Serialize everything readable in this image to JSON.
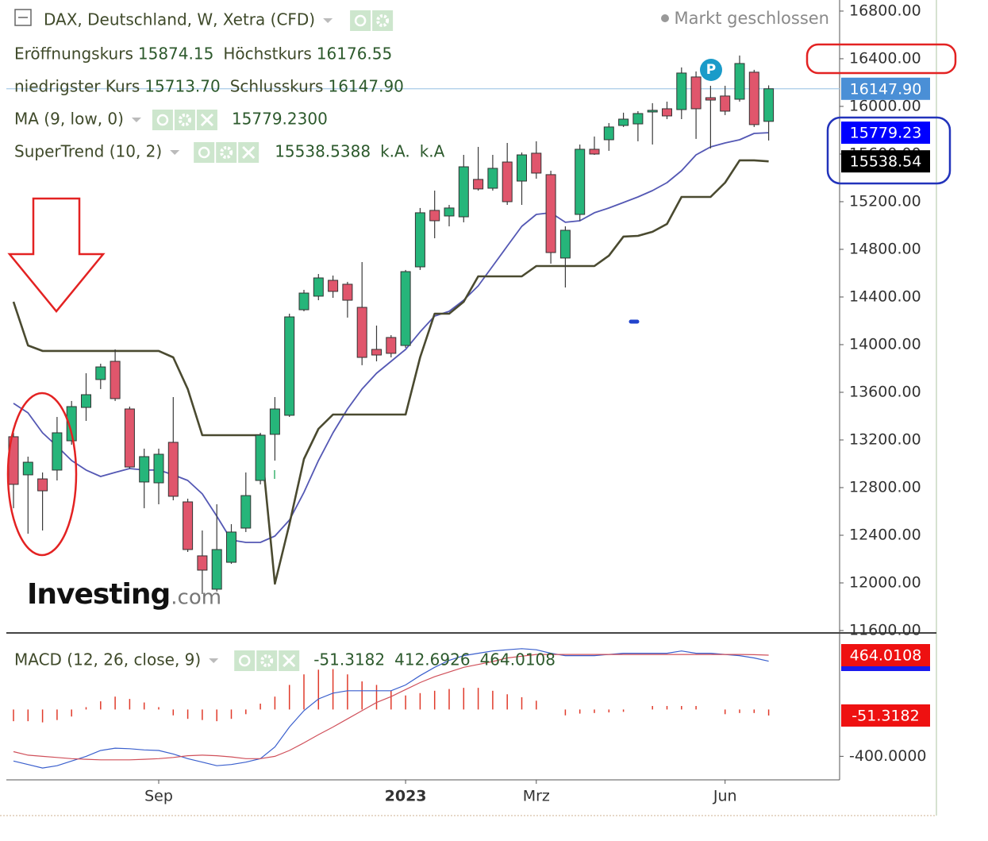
{
  "header": {
    "title": "DAX, Deutschland, W, Xetra (CFD)",
    "status": "Markt geschlossen",
    "ohlc": [
      {
        "label": "Eröffnungskurs",
        "value": "15874.15"
      },
      {
        "label": "Höchstkurs",
        "value": "16176.55"
      },
      {
        "label": "niedrigster Kurs",
        "value": "15713.70"
      },
      {
        "label": "Schlusskurs",
        "value": "16147.90"
      }
    ],
    "logo": "Investing",
    "logo_suffix": ".com",
    "marker": "P"
  },
  "chart_data": [
    {
      "type": "candlestick",
      "categories": [
        null,
        null,
        null,
        null,
        null,
        null,
        null,
        null,
        null,
        null,
        "Sep",
        null,
        null,
        null,
        null,
        null,
        null,
        null,
        null,
        null,
        null,
        null,
        null,
        null,
        null,
        null,
        null,
        "2023",
        null,
        null,
        null,
        null,
        null,
        null,
        null,
        null,
        "Mrz",
        null,
        null,
        null,
        null,
        null,
        null,
        null,
        null,
        null,
        null,
        null,
        null,
        "Jun",
        null,
        null,
        null
      ],
      "open": [
        13227,
        12907,
        12873,
        12947,
        13193,
        13473,
        13707,
        13860,
        13460,
        12847,
        12840,
        13180,
        12680,
        12227,
        11947,
        12173,
        12460,
        12860,
        13247,
        13407,
        14293,
        14407,
        14540,
        14507,
        14313,
        13960,
        14060,
        13993,
        14653,
        15127,
        15080,
        15073,
        15387,
        15313,
        15533,
        15373,
        15607,
        15427,
        14727,
        15093,
        15640,
        15720,
        15840,
        15853,
        15953,
        15980,
        15973,
        16247,
        16073,
        16087,
        16060,
        16287,
        15874.15
      ],
      "high": [
        13260,
        13060,
        12927,
        13393,
        13527,
        13760,
        13840,
        13960,
        13480,
        13127,
        13127,
        13560,
        12707,
        12440,
        12660,
        12493,
        12927,
        13260,
        13560,
        14260,
        14460,
        14593,
        14580,
        14527,
        14693,
        14160,
        14080,
        14627,
        15147,
        15293,
        15173,
        15593,
        15660,
        15593,
        15693,
        15613,
        15707,
        15460,
        14993,
        15680,
        15747,
        15860,
        15947,
        15960,
        16027,
        16040,
        16327,
        16293,
        16173,
        16173,
        16427,
        16307,
        16176.55
      ],
      "low": [
        12627,
        12413,
        12440,
        12860,
        13160,
        13360,
        13627,
        13527,
        12960,
        12627,
        12660,
        12693,
        12260,
        11907,
        11927,
        12160,
        12427,
        12827,
        13027,
        13393,
        14280,
        14373,
        14393,
        14227,
        13827,
        13860,
        13893,
        13973,
        14627,
        14893,
        14993,
        15027,
        15293,
        15293,
        15173,
        15173,
        15393,
        14680,
        14480,
        15040,
        15593,
        15627,
        15827,
        15707,
        15680,
        15893,
        15893,
        15727,
        15647,
        15927,
        16040,
        15827,
        15713.7
      ],
      "close": [
        12827,
        13013,
        12773,
        13260,
        13480,
        13580,
        13813,
        13547,
        12973,
        13060,
        13080,
        12727,
        12280,
        12107,
        12280,
        12427,
        12733,
        13240,
        13460,
        14233,
        14433,
        14560,
        14447,
        14373,
        13893,
        13913,
        13927,
        14613,
        15107,
        15040,
        15147,
        15493,
        15307,
        15480,
        15200,
        15593,
        15440,
        14773,
        14960,
        15640,
        15600,
        15827,
        15893,
        15940,
        15967,
        15920,
        16280,
        15980,
        16053,
        15960,
        16360,
        15847,
        16147.9
      ],
      "up_color": "#26b57a",
      "down_color": "#e0566c",
      "last_label": "16147.90",
      "label_color": "#4a8fd6",
      "series": [
        {
          "name": "MA (9, low, 0)",
          "color": "#5458b4",
          "legend_values": [
            "15779.2300"
          ],
          "last_label": "15779.23",
          "label_color": "#0000ff",
          "values": [
            13507,
            13427,
            13260,
            13147,
            13027,
            12947,
            12893,
            12927,
            12960,
            12947,
            12947,
            12907,
            12860,
            12747,
            12560,
            12360,
            12340,
            12340,
            12393,
            12527,
            12760,
            13027,
            13260,
            13460,
            13627,
            13760,
            13860,
            13960,
            14107,
            14240,
            14280,
            14373,
            14493,
            14660,
            14827,
            14993,
            15093,
            15107,
            15027,
            15040,
            15107,
            15147,
            15193,
            15240,
            15293,
            15360,
            15460,
            15593,
            15660,
            15693,
            15720,
            15773,
            15779.23
          ]
        },
        {
          "name": "SuperTrend (10, 2)",
          "color": "#4a4a30",
          "legend_values": [
            "15538.5388",
            "k.A.",
            "k.A"
          ],
          "last_label": "15538.54",
          "label_color": "#000000",
          "values": [
            14360,
            13993,
            13947,
            13947,
            13947,
            13947,
            13947,
            13947,
            13947,
            13947,
            13947,
            13893,
            13627,
            13240,
            13240,
            13240,
            13240,
            13240,
            11993,
            12493,
            13040,
            13293,
            13413,
            13413,
            13413,
            13413,
            13413,
            13413,
            13893,
            14260,
            14260,
            14360,
            14573,
            14573,
            14573,
            14573,
            14660,
            14660,
            14660,
            14660,
            14660,
            14747,
            14907,
            14913,
            14947,
            15013,
            15240,
            15240,
            15240,
            15360,
            15547,
            15547,
            15538.54
          ]
        }
      ],
      "ylim": [
        11580,
        16893
      ],
      "yticks": [
        {
          "value": 16800,
          "label": "16800.00"
        },
        {
          "value": 16400,
          "label": "16400.00"
        },
        {
          "value": 16000,
          "label": "16000.00"
        },
        {
          "value": 15600,
          "label": "15600.00"
        },
        {
          "value": 15200,
          "label": "15200.00"
        },
        {
          "value": 14800,
          "label": "14800.00"
        },
        {
          "value": 14400,
          "label": "14400.00"
        },
        {
          "value": 14000,
          "label": "14000.00"
        },
        {
          "value": 13600,
          "label": "13600.00"
        },
        {
          "value": 13200,
          "label": "13200.00"
        },
        {
          "value": 12800,
          "label": "12800.00"
        },
        {
          "value": 12400,
          "label": "12400.00"
        },
        {
          "value": 12000,
          "label": "12000.00"
        },
        {
          "value": 11600,
          "label": "11600.00"
        }
      ]
    },
    {
      "type": "macd",
      "title": "MACD (12, 26, close, 9)",
      "series": [
        {
          "name": "Histogramm",
          "color": "#e03a2a",
          "legend_value": "-51.3182",
          "last_label": "-51.3182",
          "label_color": "#ee1111",
          "values": [
            -100,
            -100,
            -110,
            -90,
            -60,
            20,
            70,
            110,
            90,
            60,
            20,
            -50,
            -80,
            -90,
            -100,
            -80,
            -40,
            50,
            110,
            210,
            300,
            340,
            345,
            300,
            240,
            210,
            160,
            120,
            140,
            160,
            175,
            185,
            185,
            160,
            130,
            105,
            75,
            null,
            -50,
            -35,
            -30,
            -25,
            -20,
            null,
            30,
            30,
            30,
            30,
            null,
            -40,
            -30,
            -30,
            -51.3182
          ]
        },
        {
          "name": "MACD",
          "color": "#3a5fcd",
          "legend_value": "412.6926",
          "values": [
            -440,
            -470,
            -500,
            -480,
            -440,
            -400,
            -350,
            -330,
            -335,
            -345,
            -350,
            -380,
            -420,
            -450,
            -480,
            -470,
            -450,
            -420,
            -320,
            -150,
            -10,
            90,
            140,
            160,
            160,
            160,
            160,
            210,
            290,
            360,
            420,
            460,
            480,
            500,
            510,
            520,
            510,
            480,
            460,
            460,
            460,
            470,
            480,
            480,
            480,
            480,
            500,
            480,
            480,
            470,
            460,
            440,
            412.6926
          ]
        },
        {
          "name": "Signal",
          "color": "#d0505a",
          "legend_value": "464.0108",
          "last_label": "464.0108",
          "label_color": "#ee1111",
          "values": [
            -360,
            -390,
            -400,
            -410,
            -420,
            -425,
            -430,
            -430,
            -430,
            -425,
            -420,
            -410,
            -395,
            -390,
            -395,
            -405,
            -420,
            -420,
            -400,
            -350,
            -285,
            -215,
            -150,
            -80,
            -10,
            60,
            110,
            170,
            230,
            280,
            320,
            360,
            385,
            410,
            440,
            455,
            470,
            470,
            470,
            470,
            470,
            470,
            470,
            470,
            470,
            470,
            470,
            470,
            470,
            470,
            470,
            468,
            464.0108
          ]
        }
      ],
      "ylim": [
        -601,
        654
      ],
      "yticks": [
        {
          "value": -400,
          "label": "-400.0000"
        }
      ]
    }
  ]
}
